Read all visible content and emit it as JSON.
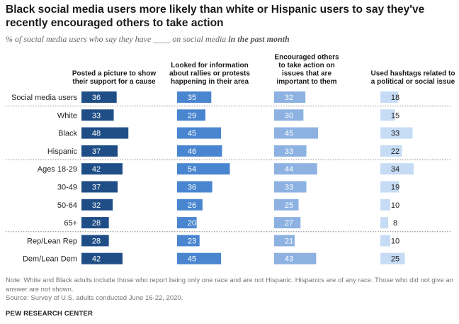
{
  "title": "Black social media users more likely than white or Hispanic users to say they've recently encouraged others to take action",
  "subtitle_prefix": "% of social media users who say they have",
  "subtitle_blank": "____",
  "subtitle_mid": "on social media",
  "subtitle_emphasis": "in the past month",
  "chart_data": {
    "type": "bar",
    "categories": [
      "Social media users",
      "White",
      "Black",
      "Hispanic",
      "Ages 18-29",
      "30-49",
      "50-64",
      "65+",
      "Rep/Lean Rep",
      "Dem/Lean Dem"
    ],
    "groups": [
      [
        0
      ],
      [
        1,
        2,
        3
      ],
      [
        4,
        5,
        6,
        7
      ],
      [
        8,
        9
      ]
    ],
    "series": [
      {
        "name": "Posted a picture to show their support for a cause",
        "header_lines": [
          "Posted a picture to show",
          "their support for a cause"
        ],
        "color": "#1f4e87",
        "label_color": "#ffffff",
        "values": [
          36,
          33,
          48,
          37,
          42,
          37,
          32,
          28,
          28,
          42
        ]
      },
      {
        "name": "Looked for information about rallies or protests happening in their area",
        "header_lines": [
          "Looked for information",
          "about rallies or protests",
          "happening in their area"
        ],
        "color": "#4a86d0",
        "label_color": "#ffffff",
        "values": [
          35,
          29,
          45,
          46,
          54,
          36,
          26,
          20,
          23,
          45
        ]
      },
      {
        "name": "Encouraged others to take action on issues that are important to them",
        "header_lines": [
          "Encouraged others",
          "to take action on",
          "issues that are",
          "important to them"
        ],
        "color": "#8db2e2",
        "label_color": "#ffffff",
        "values": [
          32,
          30,
          45,
          33,
          44,
          33,
          25,
          27,
          21,
          43
        ]
      },
      {
        "name": "Used hashtags related to a political or social issue",
        "header_lines": [
          "Used hashtags related to",
          "a political or social issue"
        ],
        "color": "#c6dcf5",
        "label_color": "#222222",
        "values": [
          18,
          15,
          33,
          22,
          34,
          19,
          10,
          8,
          10,
          25
        ]
      }
    ]
  },
  "footer": {
    "note": "Note: White and Black adults include those who report being only one race and are not Hispanic. Hispanics are of any race. Those who did not give an answer are not shown.",
    "source": "Source: Survey of U.S. adults conducted June 16-22, 2020."
  },
  "brand": "PEW RESEARCH CENTER"
}
